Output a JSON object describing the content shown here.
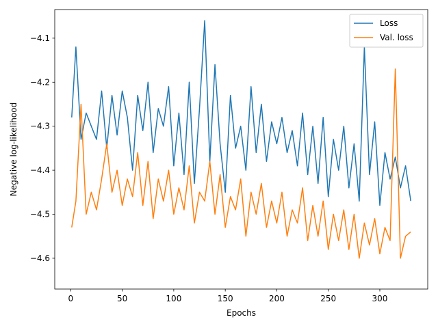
{
  "chart_data": {
    "type": "line",
    "xlabel": "Epochs",
    "ylabel": "Negative log-likelihood",
    "xlim": [
      -15.5,
      346.5
    ],
    "ylim": [
      -4.67,
      -4.035
    ],
    "xticks": [
      0,
      50,
      100,
      150,
      200,
      250,
      300
    ],
    "xtick_labels": [
      "0",
      "50",
      "100",
      "150",
      "200",
      "250",
      "300"
    ],
    "yticks": [
      -4.6,
      -4.5,
      -4.4,
      -4.3,
      -4.2,
      -4.1
    ],
    "ytick_labels": [
      "−4.6",
      "−4.5",
      "−4.4",
      "−4.3",
      "−4.2",
      "−4.1"
    ],
    "grid": false,
    "legend_position": "top-right",
    "series": [
      {
        "name": "Loss",
        "color": "#1f77b4",
        "x": [
          1,
          5,
          10,
          15,
          20,
          25,
          30,
          35,
          40,
          45,
          50,
          55,
          60,
          65,
          70,
          75,
          80,
          85,
          90,
          95,
          100,
          105,
          110,
          115,
          120,
          125,
          130,
          135,
          140,
          145,
          150,
          155,
          160,
          165,
          170,
          175,
          180,
          185,
          190,
          195,
          200,
          205,
          210,
          215,
          220,
          225,
          230,
          235,
          240,
          245,
          250,
          255,
          260,
          265,
          270,
          275,
          280,
          285,
          290,
          295,
          300,
          305,
          310,
          315,
          320,
          325,
          330
        ],
        "y": [
          -4.28,
          -4.12,
          -4.33,
          -4.27,
          -4.3,
          -4.33,
          -4.22,
          -4.35,
          -4.23,
          -4.32,
          -4.22,
          -4.28,
          -4.4,
          -4.23,
          -4.31,
          -4.2,
          -4.36,
          -4.26,
          -4.3,
          -4.21,
          -4.39,
          -4.27,
          -4.41,
          -4.2,
          -4.43,
          -4.26,
          -4.06,
          -4.38,
          -4.16,
          -4.34,
          -4.45,
          -4.23,
          -4.35,
          -4.3,
          -4.4,
          -4.21,
          -4.36,
          -4.25,
          -4.38,
          -4.29,
          -4.34,
          -4.28,
          -4.36,
          -4.31,
          -4.39,
          -4.27,
          -4.41,
          -4.3,
          -4.43,
          -4.28,
          -4.46,
          -4.33,
          -4.4,
          -4.3,
          -4.44,
          -4.34,
          -4.47,
          -4.12,
          -4.41,
          -4.29,
          -4.48,
          -4.36,
          -4.42,
          -4.37,
          -4.44,
          -4.39,
          -4.47
        ]
      },
      {
        "name": "Val. loss",
        "color": "#ff7f0e",
        "x": [
          1,
          5,
          10,
          15,
          20,
          25,
          30,
          35,
          40,
          45,
          50,
          55,
          60,
          65,
          70,
          75,
          80,
          85,
          90,
          95,
          100,
          105,
          110,
          115,
          120,
          125,
          130,
          135,
          140,
          145,
          150,
          155,
          160,
          165,
          170,
          175,
          180,
          185,
          190,
          195,
          200,
          205,
          210,
          215,
          220,
          225,
          230,
          235,
          240,
          245,
          250,
          255,
          260,
          265,
          270,
          275,
          280,
          285,
          290,
          295,
          300,
          305,
          310,
          315,
          320,
          325,
          330
        ],
        "y": [
          -4.53,
          -4.47,
          -4.25,
          -4.5,
          -4.45,
          -4.49,
          -4.42,
          -4.34,
          -4.45,
          -4.4,
          -4.48,
          -4.42,
          -4.46,
          -4.36,
          -4.48,
          -4.38,
          -4.51,
          -4.42,
          -4.47,
          -4.4,
          -4.5,
          -4.44,
          -4.49,
          -4.39,
          -4.52,
          -4.45,
          -4.47,
          -4.38,
          -4.5,
          -4.41,
          -4.53,
          -4.46,
          -4.49,
          -4.42,
          -4.55,
          -4.45,
          -4.5,
          -4.43,
          -4.53,
          -4.47,
          -4.52,
          -4.45,
          -4.55,
          -4.49,
          -4.52,
          -4.44,
          -4.56,
          -4.48,
          -4.55,
          -4.47,
          -4.58,
          -4.5,
          -4.56,
          -4.49,
          -4.58,
          -4.5,
          -4.6,
          -4.52,
          -4.57,
          -4.51,
          -4.59,
          -4.53,
          -4.56,
          -4.17,
          -4.6,
          -4.55,
          -4.54
        ]
      }
    ]
  }
}
